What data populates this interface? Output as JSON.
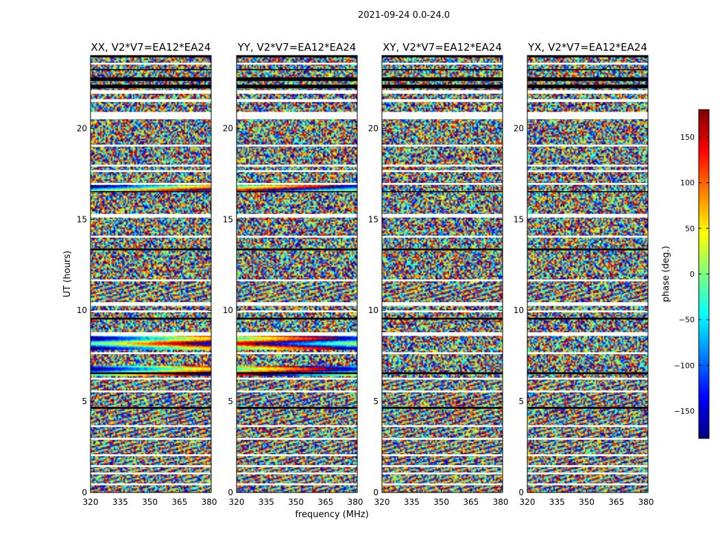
{
  "figure": {
    "title": "2021-09-24 0.0-24.0"
  },
  "chart_data": [
    {
      "type": "heatmap",
      "title": "XX, V2*V7=EA12*EA24",
      "ylabel": "UT (hours)",
      "xlabel": "",
      "xlim": [
        320,
        381
      ],
      "ylim": [
        0,
        24
      ],
      "xticks": [
        320,
        335,
        350,
        365,
        380
      ],
      "yticks": [
        0,
        5,
        10,
        15,
        20
      ],
      "grid": false
    },
    {
      "type": "heatmap",
      "title": "YY, V2*V7=EA12*EA24",
      "ylabel": "",
      "xlabel": "frequency (MHz)",
      "xlim": [
        320,
        381
      ],
      "ylim": [
        0,
        24
      ],
      "xticks": [
        320,
        335,
        350,
        365,
        380
      ],
      "yticks": [
        0,
        5,
        10,
        15,
        20
      ],
      "grid": false
    },
    {
      "type": "heatmap",
      "title": "XY, V2*V7=EA12*EA24",
      "ylabel": "",
      "xlabel": "",
      "xlim": [
        320,
        381
      ],
      "ylim": [
        0,
        24
      ],
      "xticks": [
        320,
        335,
        350,
        365,
        380
      ],
      "yticks": [
        0,
        5,
        10,
        15,
        20
      ],
      "grid": false
    },
    {
      "type": "heatmap",
      "title": "YX, V2*V7=EA12*EA24",
      "ylabel": "",
      "xlabel": "",
      "xlim": [
        320,
        381
      ],
      "ylim": [
        0,
        24
      ],
      "xticks": [
        320,
        335,
        350,
        365,
        380
      ],
      "yticks": [
        0,
        5,
        10,
        15,
        20
      ],
      "grid": false
    }
  ],
  "colorbar": {
    "label": "phase (deg.)",
    "range": [
      -180,
      180
    ],
    "ticks": [
      -150,
      -100,
      -50,
      0,
      50,
      100,
      150
    ],
    "tick_labels": [
      "−150",
      "−100",
      "−50",
      "0",
      "50",
      "100",
      "150"
    ],
    "colormap": "jet",
    "stops": [
      "#00007f",
      "#0000ff",
      "#00ffff",
      "#7fff7f",
      "#ffff00",
      "#ff0000",
      "#7f0000"
    ]
  },
  "blank_bands_hours": [
    [
      0.4,
      0.5
    ],
    [
      1.0,
      1.1
    ],
    [
      1.4,
      1.5
    ],
    [
      2.0,
      2.1
    ],
    [
      2.9,
      3.0
    ],
    [
      3.6,
      3.7
    ],
    [
      5.5,
      5.6
    ],
    [
      6.2,
      6.3
    ],
    [
      7.6,
      7.7
    ],
    [
      8.6,
      8.8
    ],
    [
      9.9,
      10.0
    ],
    [
      10.25,
      10.45
    ],
    [
      11.6,
      11.7
    ],
    [
      14.0,
      14.1
    ],
    [
      15.1,
      15.3
    ],
    [
      16.9,
      17.0
    ],
    [
      17.6,
      17.7
    ],
    [
      17.9,
      18.0
    ],
    [
      19.0,
      19.1
    ],
    [
      20.5,
      20.9
    ],
    [
      21.45,
      21.6
    ],
    [
      21.9,
      22.1
    ],
    [
      23.5,
      23.6
    ]
  ],
  "dark_bands_hours": [
    [
      4.6,
      4.7
    ],
    [
      6.5,
      6.6
    ],
    [
      9.5,
      9.6
    ],
    [
      13.3,
      13.4
    ],
    [
      16.5,
      16.55
    ],
    [
      22.2,
      22.4
    ],
    [
      22.6,
      22.8
    ],
    [
      23.2,
      23.25
    ],
    [
      23.9,
      24.0
    ]
  ]
}
